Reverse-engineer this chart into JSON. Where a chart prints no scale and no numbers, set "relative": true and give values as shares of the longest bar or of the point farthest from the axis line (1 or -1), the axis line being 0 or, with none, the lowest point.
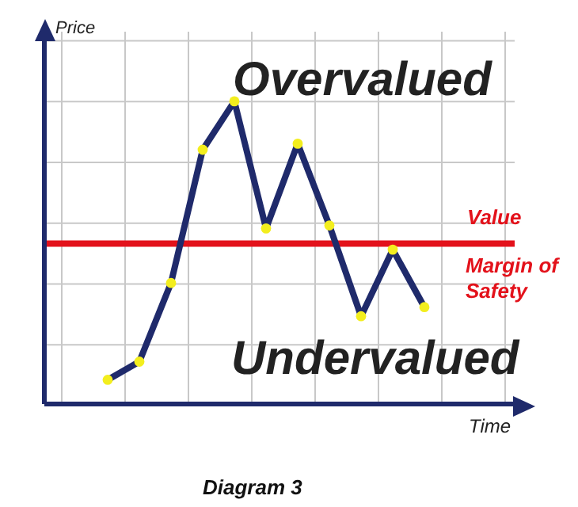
{
  "chart_data": {
    "type": "line",
    "relative": true,
    "xlabel": "Time",
    "ylabel": "Price",
    "categories": [
      null,
      null,
      null,
      null,
      null,
      null,
      null,
      null,
      null,
      null,
      null
    ],
    "series": [
      {
        "color": "#1f2a6b",
        "values": [
          0.08,
          0.14,
          0.4,
          0.84,
          1,
          0.58,
          0.86,
          0.59,
          0.29,
          0.51,
          0.32
        ]
      }
    ],
    "marker": "circle",
    "grid": true,
    "ref_lines": [
      {
        "axis": "y",
        "value": 0.53,
        "label": "Value",
        "color": "#e3121b"
      }
    ],
    "annotations": [
      "Overvalued",
      "Undervalued",
      "Margin of Safety",
      "Diagram 3"
    ]
  }
}
